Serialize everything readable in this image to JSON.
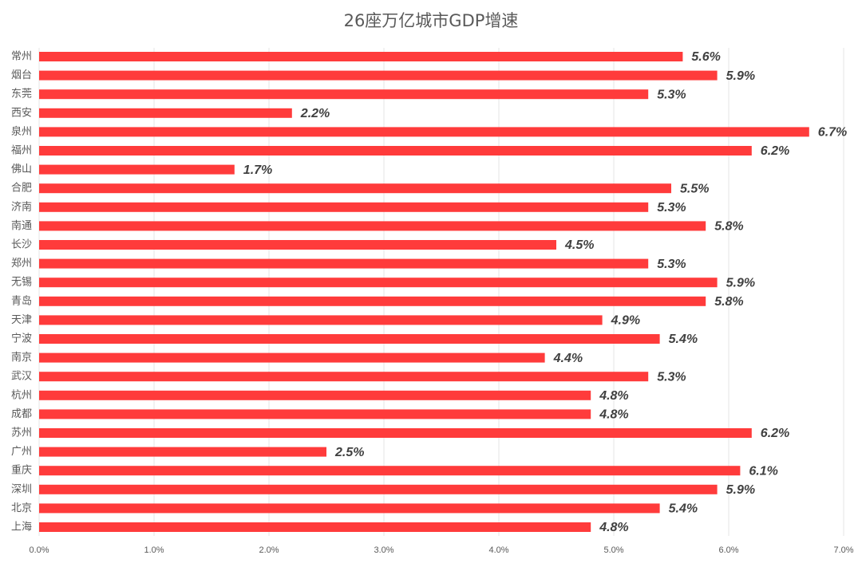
{
  "chart_data": {
    "type": "bar",
    "orientation": "horizontal",
    "title": "26座万亿城市GDP增速",
    "categories": [
      "常州",
      "烟台",
      "东莞",
      "西安",
      "泉州",
      "福州",
      "佛山",
      "合肥",
      "济南",
      "南通",
      "长沙",
      "郑州",
      "无锡",
      "青岛",
      "天津",
      "宁波",
      "南京",
      "武汉",
      "杭州",
      "成都",
      "苏州",
      "广州",
      "重庆",
      "深圳",
      "北京",
      "上海"
    ],
    "values": [
      5.6,
      5.9,
      5.3,
      2.2,
      6.7,
      6.2,
      1.7,
      5.5,
      5.3,
      5.8,
      4.5,
      5.3,
      5.9,
      5.8,
      4.9,
      5.4,
      4.4,
      5.3,
      4.8,
      4.8,
      6.2,
      2.5,
      6.1,
      5.9,
      5.4,
      4.8
    ],
    "data_labels": [
      "5.6%",
      "5.9%",
      "5.3%",
      "2.2%",
      "6.7%",
      "6.2%",
      "1.7%",
      "5.5%",
      "5.3%",
      "5.8%",
      "4.5%",
      "5.3%",
      "5.9%",
      "5.8%",
      "4.9%",
      "5.4%",
      "4.4%",
      "5.3%",
      "4.8%",
      "4.8%",
      "6.2%",
      "2.5%",
      "6.1%",
      "5.9%",
      "5.4%",
      "4.8%"
    ],
    "x_ticks": [
      "0.0%",
      "1.0%",
      "2.0%",
      "3.0%",
      "4.0%",
      "5.0%",
      "6.0%",
      "7.0%"
    ],
    "xlim": [
      0,
      7
    ],
    "xlabel": "",
    "ylabel": "",
    "grid": "vertical",
    "legend": "none",
    "bar_color": "#ff3b3b",
    "label_color": "#404040",
    "grid_color": "#e6e6e6",
    "axis_text_color": "#595959"
  }
}
